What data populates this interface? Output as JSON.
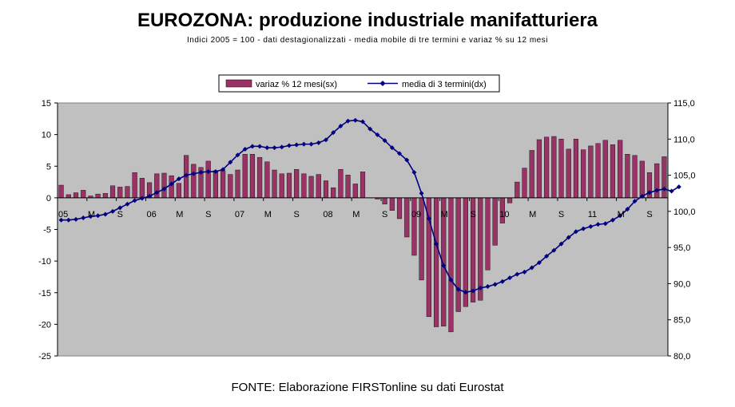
{
  "title": "EUROZONA: produzione industriale manifatturiera",
  "subtitle": "Indici 2005 = 100 - dati destagionalizzati - media mobile di tre termini e variaz % su 12 mesi",
  "source": "FONTE: Elaborazione FIRSTonline su dati Eurostat",
  "colors": {
    "bar": "#993366",
    "line": "#000080",
    "plot_bg": "#c0c0c0"
  },
  "chart_data": {
    "type": "bar+line",
    "legend_position": "top-center",
    "grid": false,
    "x_tick_labels": [
      "05",
      "M",
      "S",
      "06",
      "M",
      "S",
      "07",
      "M",
      "S",
      "08",
      "M",
      "S",
      "09",
      "M",
      "S",
      "10",
      "M",
      "S",
      "11",
      "M",
      "S"
    ],
    "left_axis": {
      "ylim": [
        -25,
        15
      ],
      "ticks": [
        "15",
        "10",
        "5",
        "0",
        "-5",
        "-10",
        "-15",
        "-20",
        "-25"
      ]
    },
    "right_axis": {
      "ylim": [
        80,
        115
      ],
      "ticks": [
        "115,0",
        "110,0",
        "105,0",
        "100,0",
        "95,0",
        "90,0",
        "85,0",
        "80,0"
      ]
    },
    "series": [
      {
        "name": "variaz % 12 mesi(sx)",
        "type": "bar",
        "axis": "left",
        "values": [
          2.0,
          0.5,
          0.8,
          1.2,
          0.3,
          0.6,
          0.7,
          1.9,
          1.7,
          1.8,
          4.0,
          3.1,
          2.4,
          3.8,
          3.9,
          3.5,
          2.3,
          6.7,
          5.3,
          4.8,
          5.8,
          4.3,
          4.3,
          3.7,
          4.4,
          6.9,
          6.9,
          6.4,
          5.7,
          4.4,
          3.8,
          3.9,
          4.5,
          3.8,
          3.4,
          3.7,
          2.7,
          1.6,
          4.5,
          3.6,
          2.2,
          4.1,
          0.0,
          -0.2,
          -1.0,
          -2.0,
          -3.3,
          -6.2,
          -9.1,
          -13.0,
          -18.8,
          -20.4,
          -20.3,
          -21.2,
          -18.0,
          -17.2,
          -16.5,
          -16.2,
          -11.4,
          -7.5,
          -4.0,
          -0.8,
          2.5,
          4.7,
          7.5,
          9.2,
          9.6,
          9.7,
          9.3,
          7.7,
          9.3,
          7.6,
          8.2,
          8.6,
          9.1,
          8.4,
          9.1,
          6.9,
          6.7,
          5.8,
          4.0,
          5.4,
          6.5
        ]
      },
      {
        "name": "media di 3 termini(dx)",
        "type": "line",
        "axis": "right",
        "values": [
          98.8,
          98.8,
          98.9,
          99.1,
          99.3,
          99.4,
          99.6,
          100.0,
          100.5,
          101.0,
          101.5,
          101.8,
          102.1,
          102.6,
          103.1,
          103.8,
          104.5,
          105.0,
          105.2,
          105.4,
          105.5,
          105.5,
          105.8,
          106.8,
          107.8,
          108.6,
          109.0,
          109.0,
          108.8,
          108.8,
          108.9,
          109.1,
          109.2,
          109.3,
          109.3,
          109.5,
          109.9,
          110.9,
          111.8,
          112.5,
          112.6,
          112.4,
          111.4,
          110.6,
          109.8,
          108.8,
          108.0,
          107.1,
          105.4,
          102.5,
          99.0,
          95.5,
          92.5,
          90.5,
          89.2,
          88.8,
          89.0,
          89.4,
          89.6,
          89.9,
          90.3,
          90.8,
          91.3,
          91.6,
          92.2,
          92.9,
          93.8,
          94.6,
          95.5,
          96.4,
          97.2,
          97.6,
          97.9,
          98.2,
          98.3,
          98.8,
          99.4,
          100.3,
          101.4,
          102.1,
          102.6,
          102.9,
          103.1,
          102.8,
          103.4
        ]
      }
    ]
  }
}
